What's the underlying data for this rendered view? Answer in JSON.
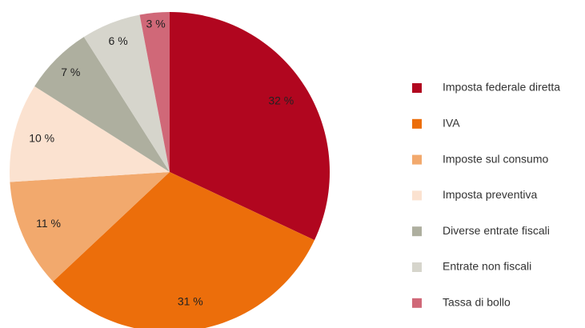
{
  "chart_data": {
    "type": "pie",
    "categories": [
      "Imposta federale diretta",
      "IVA",
      "Imposte sul consumo",
      "Imposta preventiva",
      "Diverse entrate fiscali",
      "Entrate non fiscali",
      "Tassa di bollo"
    ],
    "values": [
      32,
      31,
      11,
      10,
      7,
      6,
      3
    ],
    "value_labels": [
      "32 %",
      "31 %",
      "11 %",
      "10 %",
      "7 %",
      "6 %",
      "3 %"
    ],
    "colors": [
      "#b1061f",
      "#ec6e0b",
      "#f2a96d",
      "#fbe2d0",
      "#aeaf9f",
      "#d6d5cc",
      "#d06878"
    ],
    "legend": "right"
  }
}
